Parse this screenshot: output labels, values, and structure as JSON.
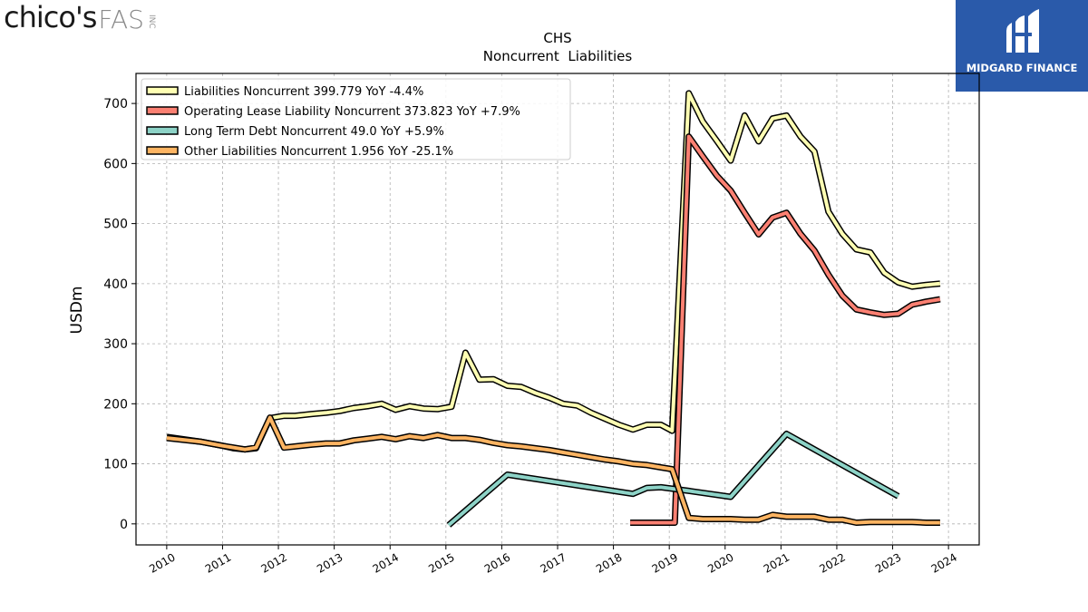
{
  "branding": {
    "left_logo_main": "chico's",
    "left_logo_suffix": "FAS",
    "left_logo_inc": "INC",
    "right_logo_text": "MIDGARD FINANCE",
    "right_logo_color": "#2a5aaa"
  },
  "chart_data": {
    "type": "line",
    "title": "CHS",
    "subtitle": "Noncurrent  Liabilities",
    "ylabel": "USDm",
    "xlabel": "",
    "xlim": [
      2009.45,
      2024.55
    ],
    "ylim": [
      -35,
      750
    ],
    "x_ticks": [
      2010,
      2011,
      2012,
      2013,
      2014,
      2015,
      2016,
      2017,
      2018,
      2019,
      2020,
      2021,
      2022,
      2023,
      2024
    ],
    "y_ticks": [
      0,
      100,
      200,
      300,
      400,
      500,
      600,
      700
    ],
    "grid": true,
    "legend_position": "top-left",
    "series": [
      {
        "name": "Liabilities Noncurrent  399.779 YoY -4.4%",
        "color": "#ffffb3",
        "x": [
          2010.0,
          2010.6,
          2011.0,
          2011.2,
          2011.4,
          2011.6,
          2011.85,
          2012.1,
          2012.3,
          2012.6,
          2012.85,
          2013.1,
          2013.35,
          2013.6,
          2013.85,
          2014.1,
          2014.35,
          2014.6,
          2014.85,
          2015.1,
          2015.35,
          2015.6,
          2015.85,
          2016.1,
          2016.35,
          2016.6,
          2016.85,
          2017.1,
          2017.35,
          2017.6,
          2017.85,
          2018.1,
          2018.35,
          2018.6,
          2018.85,
          2019.05,
          2019.35,
          2019.6,
          2019.85,
          2020.1,
          2020.35,
          2020.6,
          2020.85,
          2021.1,
          2021.35,
          2021.6,
          2021.85,
          2022.1,
          2022.35,
          2022.6,
          2022.85,
          2023.1,
          2023.35,
          2023.6,
          2023.85
        ],
        "y": [
          145,
          137,
          130,
          126,
          124,
          126,
          176,
          180,
          180,
          183,
          185,
          188,
          193,
          196,
          200,
          190,
          196,
          192,
          191,
          195,
          285,
          240,
          241,
          230,
          228,
          218,
          210,
          200,
          197,
          185,
          175,
          165,
          157,
          165,
          165,
          155,
          717,
          670,
          638,
          605,
          680,
          637,
          675,
          680,
          645,
          620,
          520,
          483,
          457,
          452,
          418,
          402,
          395,
          398,
          400
        ]
      },
      {
        "name": "Operating Lease Liability Noncurrent  373.823 YoY +7.9%",
        "color": "#fb8072",
        "x": [
          2018.3,
          2019.1,
          2019.35,
          2019.6,
          2019.85,
          2020.1,
          2020.35,
          2020.6,
          2020.85,
          2021.1,
          2021.35,
          2021.6,
          2021.85,
          2022.1,
          2022.35,
          2022.6,
          2022.85,
          2023.1,
          2023.35,
          2023.6,
          2023.85
        ],
        "y": [
          2,
          2,
          645,
          612,
          580,
          555,
          518,
          482,
          510,
          518,
          483,
          455,
          415,
          380,
          357,
          352,
          348,
          350,
          365,
          370,
          374
        ]
      },
      {
        "name": "Long Term Debt Noncurrent  49.0 YoY +5.9%",
        "color": "#8dd3c7",
        "x": [
          2015.05,
          2016.1,
          2018.35,
          2018.6,
          2018.85,
          2019.1,
          2019.35,
          2020.1,
          2021.1,
          2023.1
        ],
        "y": [
          -2,
          82,
          50,
          60,
          61,
          58,
          55,
          45,
          150,
          46
        ]
      },
      {
        "name": "Other Liabilities Noncurrent  1.956 YoY -25.1%",
        "color": "#fdb462",
        "x": [
          2010.0,
          2010.6,
          2011.0,
          2011.2,
          2011.4,
          2011.6,
          2011.85,
          2012.1,
          2012.3,
          2012.6,
          2012.85,
          2013.1,
          2013.35,
          2013.6,
          2013.85,
          2014.1,
          2014.35,
          2014.6,
          2014.85,
          2015.1,
          2015.35,
          2015.6,
          2015.85,
          2016.1,
          2016.35,
          2016.6,
          2016.85,
          2017.1,
          2017.35,
          2017.6,
          2017.85,
          2018.1,
          2018.35,
          2018.6,
          2018.85,
          2019.05,
          2019.35,
          2019.6,
          2019.85,
          2020.1,
          2020.35,
          2020.6,
          2020.85,
          2021.1,
          2021.35,
          2021.6,
          2021.85,
          2022.1,
          2022.35,
          2022.6,
          2022.85,
          2023.1,
          2023.35,
          2023.6,
          2023.85
        ],
        "y": [
          143,
          137,
          130,
          127,
          124,
          127,
          177,
          127,
          129,
          132,
          134,
          134,
          139,
          142,
          145,
          141,
          146,
          143,
          148,
          143,
          143,
          140,
          135,
          131,
          129,
          126,
          123,
          119,
          115,
          111,
          107,
          104,
          100,
          98,
          94,
          91,
          10,
          8,
          8,
          8,
          7,
          7,
          15,
          12,
          12,
          12,
          7,
          7,
          2,
          3,
          3,
          3,
          3,
          2,
          2
        ]
      }
    ]
  }
}
